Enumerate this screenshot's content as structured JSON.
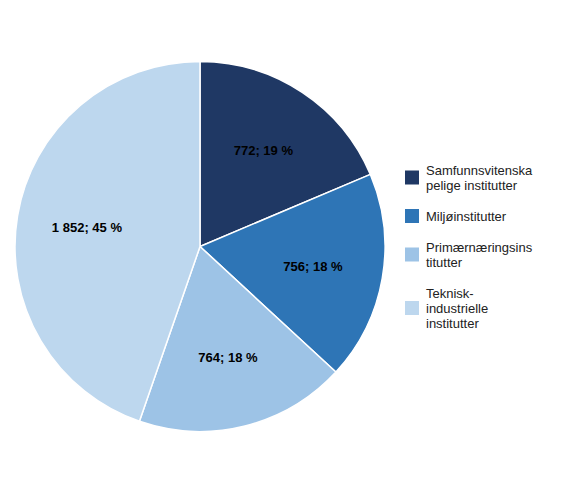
{
  "chart_data": {
    "type": "pie",
    "categories": [
      "Samfunnsvitenska\npelige institutter",
      "Miljøinstitutter",
      "Primærnæringsins\ntitutter",
      "Teknisk-\nindustrielle\ninstitutter"
    ],
    "values": [
      772,
      756,
      764,
      1852
    ],
    "value_labels": [
      "772; 19 %",
      "756; 18 %",
      "764; 18 %",
      "1 852; 45 %"
    ],
    "colors": [
      "#1F3864",
      "#2E75B6",
      "#9DC3E6",
      "#BDD7EE"
    ],
    "data_labels": true,
    "legend": "right"
  }
}
